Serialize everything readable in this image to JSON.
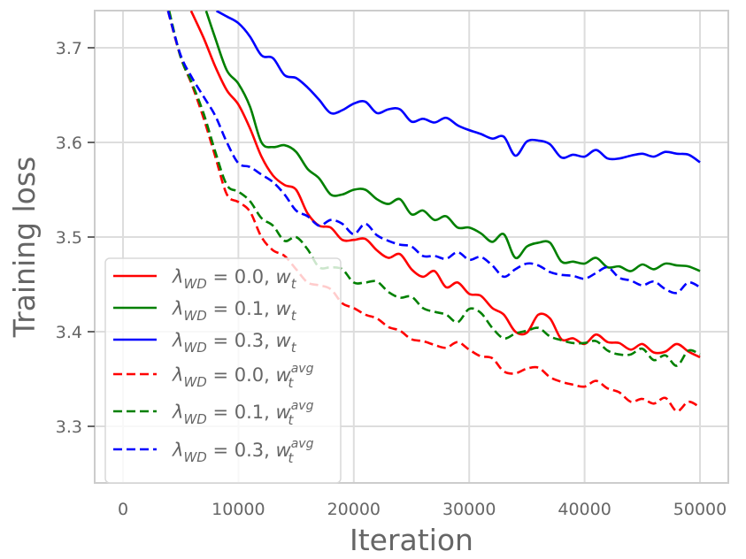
{
  "chart_data": {
    "type": "line",
    "title": "",
    "xlabel": "Iteration",
    "ylabel": "Training loss",
    "xlim": [
      -2500,
      52500
    ],
    "ylim": [
      3.24,
      3.739
    ],
    "xticks": [
      0,
      10000,
      20000,
      30000,
      40000,
      50000
    ],
    "xtick_labels": [
      "0",
      "10000",
      "20000",
      "30000",
      "40000",
      "50000"
    ],
    "yticks": [
      3.3,
      3.4,
      3.5,
      3.6,
      3.7
    ],
    "ytick_labels": [
      "3.3",
      "3.4",
      "3.5",
      "3.6",
      "3.7"
    ],
    "grid": true,
    "legend_position": "lower-left",
    "series": [
      {
        "name": "λ_WD = 0.0, w_t",
        "legend": {
          "lambda": "λ",
          "sub": "WD",
          "eq": " = 0.0, ",
          "w": "w",
          "wsub": "t",
          "wsup": ""
        },
        "color": "#ff0000",
        "dash": "solid",
        "x": [
          5900,
          7000,
          8000,
          9000,
          10000,
          11000,
          12000,
          13000,
          14000,
          15000,
          16000,
          17000,
          18000,
          19000,
          20000,
          21000,
          22000,
          23000,
          24000,
          25000,
          26000,
          27000,
          28000,
          29000,
          30000,
          31000,
          32000,
          33000,
          34000,
          35000,
          36000,
          37000,
          38000,
          39000,
          40000,
          41000,
          42000,
          43000,
          44000,
          45000,
          46000,
          47000,
          48000,
          49000,
          50000
        ],
        "y": [
          3.739,
          3.71,
          3.68,
          3.655,
          3.64,
          3.615,
          3.585,
          3.565,
          3.555,
          3.55,
          3.525,
          3.512,
          3.51,
          3.497,
          3.497,
          3.498,
          3.486,
          3.478,
          3.482,
          3.466,
          3.458,
          3.464,
          3.447,
          3.452,
          3.44,
          3.438,
          3.425,
          3.418,
          3.4,
          3.399,
          3.418,
          3.414,
          3.392,
          3.393,
          3.387,
          3.397,
          3.389,
          3.388,
          3.381,
          3.387,
          3.378,
          3.379,
          3.387,
          3.379,
          3.373
        ]
      },
      {
        "name": "λ_WD = 0.1, w_t",
        "legend": {
          "lambda": "λ",
          "sub": "WD",
          "eq": " = 0.1, ",
          "w": "w",
          "wsub": "t",
          "wsup": ""
        },
        "color": "#008000",
        "dash": "solid",
        "x": [
          7200,
          8000,
          9000,
          10000,
          11000,
          12000,
          13000,
          14000,
          15000,
          16000,
          17000,
          18000,
          19000,
          20000,
          21000,
          22000,
          23000,
          24000,
          25000,
          26000,
          27000,
          28000,
          29000,
          30000,
          31000,
          32000,
          33000,
          34000,
          35000,
          36000,
          37000,
          38000,
          39000,
          40000,
          41000,
          42000,
          43000,
          44000,
          45000,
          46000,
          47000,
          48000,
          49000,
          50000
        ],
        "y": [
          3.739,
          3.71,
          3.676,
          3.662,
          3.638,
          3.6,
          3.595,
          3.597,
          3.59,
          3.572,
          3.562,
          3.545,
          3.545,
          3.55,
          3.55,
          3.54,
          3.535,
          3.54,
          3.524,
          3.528,
          3.518,
          3.522,
          3.51,
          3.51,
          3.504,
          3.495,
          3.503,
          3.478,
          3.49,
          3.494,
          3.494,
          3.474,
          3.474,
          3.472,
          3.478,
          3.468,
          3.469,
          3.464,
          3.471,
          3.466,
          3.472,
          3.47,
          3.469,
          3.464
        ]
      },
      {
        "name": "λ_WD = 0.3, w_t",
        "legend": {
          "lambda": "λ",
          "sub": "WD",
          "eq": " = 0.3, ",
          "w": "w",
          "wsub": "t",
          "wsup": ""
        },
        "color": "#0000ff",
        "dash": "solid",
        "x": [
          8100,
          9000,
          10000,
          11000,
          12000,
          13000,
          14000,
          15000,
          16000,
          17000,
          18000,
          19000,
          20000,
          21000,
          22000,
          23000,
          24000,
          25000,
          26000,
          27000,
          28000,
          29000,
          30000,
          31000,
          32000,
          33000,
          34000,
          35000,
          36000,
          37000,
          38000,
          39000,
          40000,
          41000,
          42000,
          43000,
          44000,
          45000,
          46000,
          47000,
          48000,
          49000,
          50000
        ],
        "y": [
          3.739,
          3.733,
          3.726,
          3.712,
          3.692,
          3.689,
          3.671,
          3.668,
          3.658,
          3.645,
          3.631,
          3.634,
          3.641,
          3.643,
          3.631,
          3.635,
          3.635,
          3.622,
          3.625,
          3.621,
          3.626,
          3.618,
          3.613,
          3.609,
          3.604,
          3.606,
          3.586,
          3.601,
          3.602,
          3.598,
          3.584,
          3.587,
          3.585,
          3.592,
          3.583,
          3.583,
          3.586,
          3.588,
          3.585,
          3.59,
          3.588,
          3.587,
          3.579
        ]
      },
      {
        "name": "λ_WD = 0.0, w_t^avg",
        "legend": {
          "lambda": "λ",
          "sub": "WD",
          "eq": " = 0.0, ",
          "w": "w",
          "wsub": "t",
          "wsup": "avg"
        },
        "color": "#ff0000",
        "dash": "dashed",
        "x": [
          3900,
          5000,
          6000,
          7000,
          8000,
          9000,
          10000,
          11000,
          12000,
          13000,
          14000,
          15000,
          16000,
          17000,
          18000,
          19000,
          20000,
          21000,
          22000,
          23000,
          24000,
          25000,
          26000,
          27000,
          28000,
          29000,
          30000,
          31000,
          32000,
          33000,
          34000,
          35000,
          36000,
          37000,
          38000,
          39000,
          40000,
          41000,
          42000,
          43000,
          44000,
          45000,
          46000,
          47000,
          48000,
          49000,
          50000
        ],
        "y": [
          3.739,
          3.69,
          3.66,
          3.625,
          3.585,
          3.545,
          3.537,
          3.527,
          3.5,
          3.486,
          3.48,
          3.466,
          3.452,
          3.449,
          3.445,
          3.43,
          3.425,
          3.418,
          3.414,
          3.405,
          3.401,
          3.392,
          3.39,
          3.386,
          3.383,
          3.389,
          3.381,
          3.374,
          3.372,
          3.358,
          3.356,
          3.361,
          3.362,
          3.352,
          3.347,
          3.344,
          3.342,
          3.348,
          3.34,
          3.336,
          3.326,
          3.329,
          3.324,
          3.33,
          3.316,
          3.326,
          3.32
        ]
      },
      {
        "name": "λ_WD = 0.1, w_t^avg",
        "legend": {
          "lambda": "λ",
          "sub": "WD",
          "eq": " = 0.1, ",
          "w": "w",
          "wsub": "t",
          "wsup": "avg"
        },
        "color": "#008000",
        "dash": "dashed",
        "x": [
          4000,
          5000,
          6000,
          7000,
          8000,
          9000,
          10000,
          11000,
          12000,
          13000,
          14000,
          15000,
          16000,
          17000,
          18000,
          19000,
          20000,
          21000,
          22000,
          23000,
          24000,
          25000,
          26000,
          27000,
          28000,
          29000,
          30000,
          31000,
          32000,
          33000,
          34000,
          35000,
          36000,
          37000,
          38000,
          39000,
          40000,
          41000,
          42000,
          43000,
          44000,
          45000,
          46000,
          47000,
          48000,
          49000,
          50000
        ],
        "y": [
          3.739,
          3.69,
          3.662,
          3.63,
          3.59,
          3.555,
          3.548,
          3.538,
          3.52,
          3.512,
          3.496,
          3.5,
          3.487,
          3.468,
          3.468,
          3.466,
          3.452,
          3.452,
          3.453,
          3.442,
          3.436,
          3.437,
          3.425,
          3.421,
          3.418,
          3.41,
          3.424,
          3.42,
          3.404,
          3.393,
          3.398,
          3.401,
          3.404,
          3.395,
          3.391,
          3.388,
          3.388,
          3.39,
          3.38,
          3.376,
          3.376,
          3.382,
          3.37,
          3.375,
          3.364,
          3.38,
          3.376
        ]
      },
      {
        "name": "λ_WD = 0.3, w_t^avg",
        "legend": {
          "lambda": "λ",
          "sub": "WD",
          "eq": " = 0.3, ",
          "w": "w",
          "wsub": "t",
          "wsup": "avg"
        },
        "color": "#0000ff",
        "dash": "dashed",
        "x": [
          3900,
          5000,
          6000,
          7000,
          8000,
          9000,
          10000,
          11000,
          12000,
          13000,
          14000,
          15000,
          16000,
          17000,
          18000,
          19000,
          20000,
          21000,
          22000,
          23000,
          24000,
          25000,
          26000,
          27000,
          28000,
          29000,
          30000,
          31000,
          32000,
          33000,
          34000,
          35000,
          36000,
          37000,
          38000,
          39000,
          40000,
          41000,
          42000,
          43000,
          44000,
          45000,
          46000,
          47000,
          48000,
          49000,
          50000
        ],
        "y": [
          3.739,
          3.692,
          3.668,
          3.648,
          3.628,
          3.6,
          3.578,
          3.574,
          3.566,
          3.558,
          3.545,
          3.528,
          3.522,
          3.512,
          3.518,
          3.514,
          3.503,
          3.514,
          3.502,
          3.496,
          3.492,
          3.49,
          3.48,
          3.48,
          3.477,
          3.484,
          3.476,
          3.479,
          3.47,
          3.458,
          3.466,
          3.472,
          3.47,
          3.463,
          3.46,
          3.459,
          3.456,
          3.462,
          3.468,
          3.457,
          3.454,
          3.449,
          3.453,
          3.445,
          3.441,
          3.452,
          3.447
        ]
      }
    ]
  }
}
